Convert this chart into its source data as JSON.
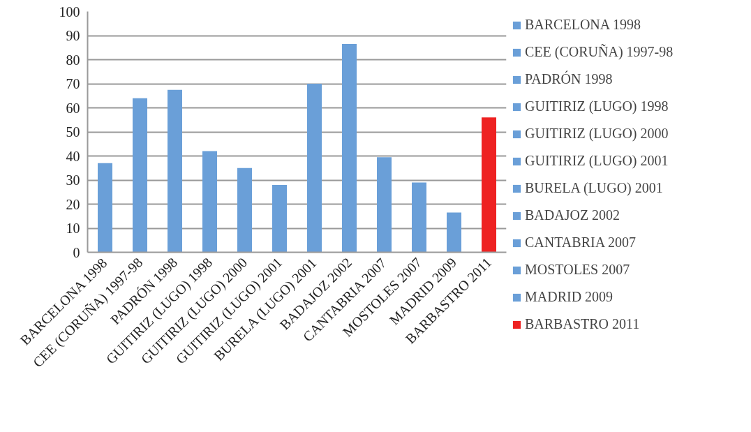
{
  "chart_data": {
    "type": "bar",
    "categories": [
      "BARCELONA 1998",
      "CEE (CORUÑA) 1997-98",
      "PADRÓN 1998",
      "GUITIRIZ (LUGO) 1998",
      "GUITIRIZ (LUGO) 2000",
      "GUITIRIZ (LUGO) 2001",
      "BURELA (LUGO) 2001",
      "BADAJOZ 2002",
      "CANTABRIA 2007",
      "MOSTOLES 2007",
      "MADRID 2009",
      "BARBASTRO 2011"
    ],
    "series": [
      {
        "name": "BARCELONA 1998",
        "color": "#6a9fd8",
        "values": [
          37,
          null,
          null,
          null,
          null,
          null,
          null,
          null,
          null,
          null,
          null,
          null
        ]
      },
      {
        "name": "CEE (CORUÑA) 1997-98",
        "color": "#6a9fd8",
        "values": [
          null,
          64,
          null,
          null,
          null,
          null,
          null,
          null,
          null,
          null,
          null,
          null
        ]
      },
      {
        "name": "PADRÓN 1998",
        "color": "#6a9fd8",
        "values": [
          null,
          null,
          67.5,
          null,
          null,
          null,
          null,
          null,
          null,
          null,
          null,
          null
        ]
      },
      {
        "name": "GUITIRIZ (LUGO) 1998",
        "color": "#6a9fd8",
        "values": [
          null,
          null,
          null,
          42,
          null,
          null,
          null,
          null,
          null,
          null,
          null,
          null
        ]
      },
      {
        "name": "GUITIRIZ (LUGO) 2000",
        "color": "#6a9fd8",
        "values": [
          null,
          null,
          null,
          null,
          35,
          null,
          null,
          null,
          null,
          null,
          null,
          null
        ]
      },
      {
        "name": "GUITIRIZ (LUGO) 2001",
        "color": "#6a9fd8",
        "values": [
          null,
          null,
          null,
          null,
          null,
          28,
          null,
          null,
          null,
          null,
          null,
          null
        ]
      },
      {
        "name": "BURELA (LUGO) 2001",
        "color": "#6a9fd8",
        "values": [
          null,
          null,
          null,
          null,
          null,
          null,
          70,
          null,
          null,
          null,
          null,
          null
        ]
      },
      {
        "name": "BADAJOZ 2002",
        "color": "#6a9fd8",
        "values": [
          null,
          null,
          null,
          null,
          null,
          null,
          null,
          86.5,
          null,
          null,
          null,
          null
        ]
      },
      {
        "name": "CANTABRIA 2007",
        "color": "#6a9fd8",
        "values": [
          null,
          null,
          null,
          null,
          null,
          null,
          null,
          null,
          39.5,
          null,
          null,
          null
        ]
      },
      {
        "name": "MOSTOLES 2007",
        "color": "#6a9fd8",
        "values": [
          null,
          null,
          null,
          null,
          null,
          null,
          null,
          null,
          null,
          29,
          null,
          null
        ]
      },
      {
        "name": "MADRID 2009",
        "color": "#6a9fd8",
        "values": [
          null,
          null,
          null,
          null,
          null,
          null,
          null,
          null,
          null,
          null,
          16.5,
          null
        ]
      },
      {
        "name": "BARBASTRO 2011",
        "color": "#ee2222",
        "values": [
          null,
          null,
          null,
          null,
          null,
          null,
          null,
          null,
          null,
          null,
          null,
          56
        ]
      }
    ],
    "ylim": [
      0,
      100
    ],
    "yticks": [
      0,
      10,
      20,
      30,
      40,
      50,
      60,
      70,
      80,
      90,
      100
    ],
    "grid": "y",
    "legend": "right"
  }
}
